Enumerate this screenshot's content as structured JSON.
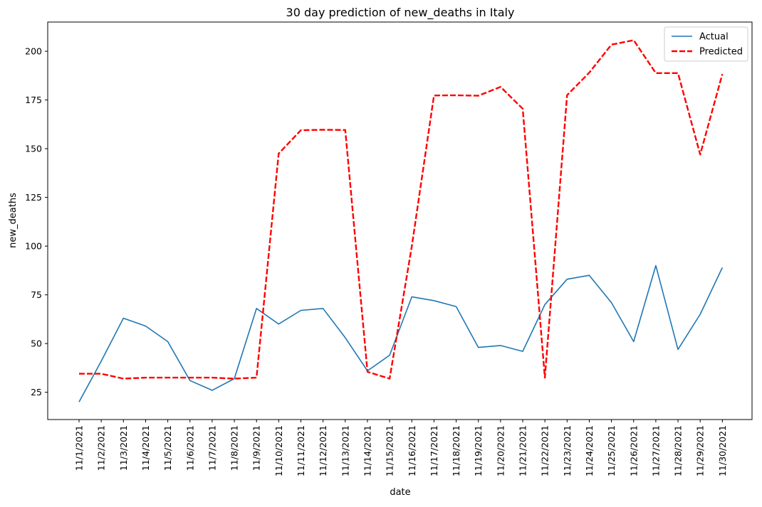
{
  "chart_data": {
    "type": "line",
    "title": "30 day prediction of new_deaths in Italy",
    "xlabel": "date",
    "ylabel": "new_deaths",
    "categories": [
      "11/1/2021",
      "11/2/2021",
      "11/3/2021",
      "11/4/2021",
      "11/5/2021",
      "11/6/2021",
      "11/7/2021",
      "11/8/2021",
      "11/9/2021",
      "11/10/2021",
      "11/11/2021",
      "11/12/2021",
      "11/13/2021",
      "11/14/2021",
      "11/15/2021",
      "11/16/2021",
      "11/17/2021",
      "11/18/2021",
      "11/19/2021",
      "11/20/2021",
      "11/21/2021",
      "11/22/2021",
      "11/23/2021",
      "11/24/2021",
      "11/25/2021",
      "11/26/2021",
      "11/27/2021",
      "11/28/2021",
      "11/29/2021",
      "11/30/2021"
    ],
    "ylim": [
      11,
      215
    ],
    "yticks": [
      25,
      50,
      75,
      100,
      125,
      150,
      175,
      200
    ],
    "legend": "top-right",
    "grid": false,
    "series": [
      {
        "name": "Actual",
        "color": "#1f77b4",
        "style": "solid",
        "values": [
          20,
          41,
          63,
          59,
          51,
          31,
          26,
          32,
          68,
          60,
          67,
          68,
          53,
          36,
          44,
          74,
          72,
          69,
          48,
          49,
          46,
          70,
          83,
          85,
          71,
          51,
          90,
          47,
          65,
          89
        ]
      },
      {
        "name": "Predicted",
        "color": "#ff0000",
        "style": "dashed",
        "values": [
          34.5,
          34.5,
          32,
          32.5,
          32.5,
          32.5,
          32.5,
          32,
          32.5,
          147.5,
          159.5,
          159.7,
          159.6,
          35.5,
          32,
          100,
          177.3,
          177.4,
          177.2,
          181.7,
          170.5,
          32.5,
          177.5,
          189,
          203.4,
          205.7,
          188.8,
          188.8,
          147,
          188.3
        ]
      }
    ]
  }
}
